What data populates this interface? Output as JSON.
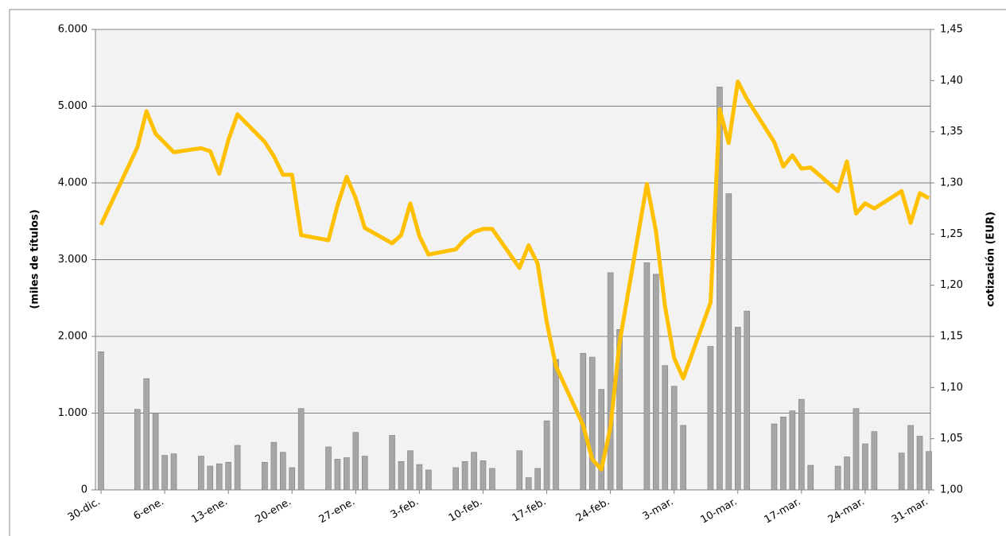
{
  "chart_data": {
    "type": "bar_line",
    "categories": [
      "30-dic.",
      null,
      null,
      null,
      null,
      null,
      null,
      "6-ene.",
      null,
      null,
      null,
      null,
      null,
      null,
      "13-ene.",
      null,
      null,
      null,
      null,
      null,
      null,
      "20-ene.",
      null,
      null,
      null,
      null,
      null,
      null,
      "27-ene.",
      null,
      null,
      null,
      null,
      null,
      null,
      "3-feb.",
      null,
      null,
      null,
      null,
      null,
      null,
      "10-feb.",
      null,
      null,
      null,
      null,
      null,
      null,
      "17-feb.",
      null,
      null,
      null,
      null,
      null,
      null,
      "24-feb.",
      null,
      null,
      null,
      null,
      null,
      null,
      "3-mar.",
      null,
      null,
      null,
      null,
      null,
      null,
      "10-mar.",
      null,
      null,
      null,
      null,
      null,
      null,
      "17-mar.",
      null,
      null,
      null,
      null,
      null,
      null,
      "24-mar.",
      null,
      null,
      null,
      null,
      null,
      null,
      "31-mar."
    ],
    "series": [
      {
        "type": "bar",
        "color": "#a6a6a6",
        "values": [
          1800,
          null,
          null,
          null,
          1050,
          1450,
          1000,
          450,
          470,
          null,
          null,
          440,
          310,
          340,
          360,
          580,
          null,
          null,
          360,
          620,
          490,
          290,
          1060,
          null,
          null,
          560,
          400,
          420,
          750,
          440,
          null,
          null,
          710,
          370,
          510,
          330,
          260,
          null,
          null,
          290,
          370,
          490,
          380,
          280,
          null,
          null,
          510,
          160,
          280,
          900,
          1700,
          null,
          null,
          1780,
          1730,
          1310,
          2830,
          2090,
          null,
          null,
          2960,
          2810,
          1620,
          1350,
          840,
          null,
          null,
          1870,
          5250,
          3860,
          2120,
          2330,
          null,
          null,
          860,
          950,
          1030,
          1180,
          320,
          null,
          null,
          310,
          430,
          1060,
          600,
          760,
          null,
          null,
          480,
          840,
          700,
          500
        ]
      },
      {
        "type": "line",
        "axis": "y2",
        "color": "#ffc000",
        "connect_gaps": true,
        "values": [
          1.259,
          null,
          null,
          null,
          1.335,
          1.37,
          1.348,
          1.339,
          1.33,
          null,
          null,
          1.334,
          1.331,
          1.309,
          1.342,
          1.367,
          null,
          null,
          1.34,
          1.326,
          1.308,
          1.308,
          1.249,
          null,
          null,
          1.244,
          1.278,
          1.306,
          1.285,
          1.256,
          null,
          null,
          1.241,
          1.249,
          1.28,
          1.248,
          1.23,
          null,
          null,
          1.235,
          1.245,
          1.252,
          1.255,
          1.255,
          null,
          null,
          1.217,
          1.239,
          1.221,
          1.164,
          1.121,
          null,
          null,
          1.063,
          1.03,
          1.02,
          1.061,
          1.144,
          null,
          null,
          1.299,
          1.253,
          1.179,
          1.129,
          1.109,
          null,
          null,
          1.183,
          1.372,
          1.339,
          1.399,
          1.382,
          null,
          null,
          1.34,
          1.316,
          1.327,
          1.314,
          1.315,
          null,
          null,
          1.292,
          1.321,
          1.27,
          1.28,
          1.275,
          null,
          null,
          1.292,
          1.261,
          1.29,
          1.285
        ]
      }
    ],
    "ylabel": "(miles de títulos)",
    "y2label": "cotización (EUR)",
    "ylim": [
      0,
      6000
    ],
    "yticks": [
      0,
      {
        "value": 1000,
        "label": "1.000"
      },
      {
        "value": 2000,
        "label": "2.000"
      },
      {
        "value": 3000,
        "label": "3.000"
      },
      {
        "value": 4000,
        "label": "4.000"
      },
      {
        "value": 5000,
        "label": "5.000"
      },
      {
        "value": 6000,
        "label": "6.000"
      }
    ],
    "y2lim": [
      1.0,
      1.45
    ],
    "y2ticks": [
      {
        "value": 1.0,
        "label": "1,00"
      },
      {
        "value": 1.05,
        "label": "1,05"
      },
      {
        "value": 1.1,
        "label": "1,10"
      },
      {
        "value": 1.15,
        "label": "1,15"
      },
      {
        "value": 1.2,
        "label": "1,20"
      },
      {
        "value": 1.25,
        "label": "1,25"
      },
      {
        "value": 1.3,
        "label": "1,30"
      },
      {
        "value": 1.35,
        "label": "1,35"
      },
      {
        "value": 1.4,
        "label": "1,40"
      },
      {
        "value": 1.45,
        "label": "1,45"
      }
    ],
    "grid": true
  }
}
